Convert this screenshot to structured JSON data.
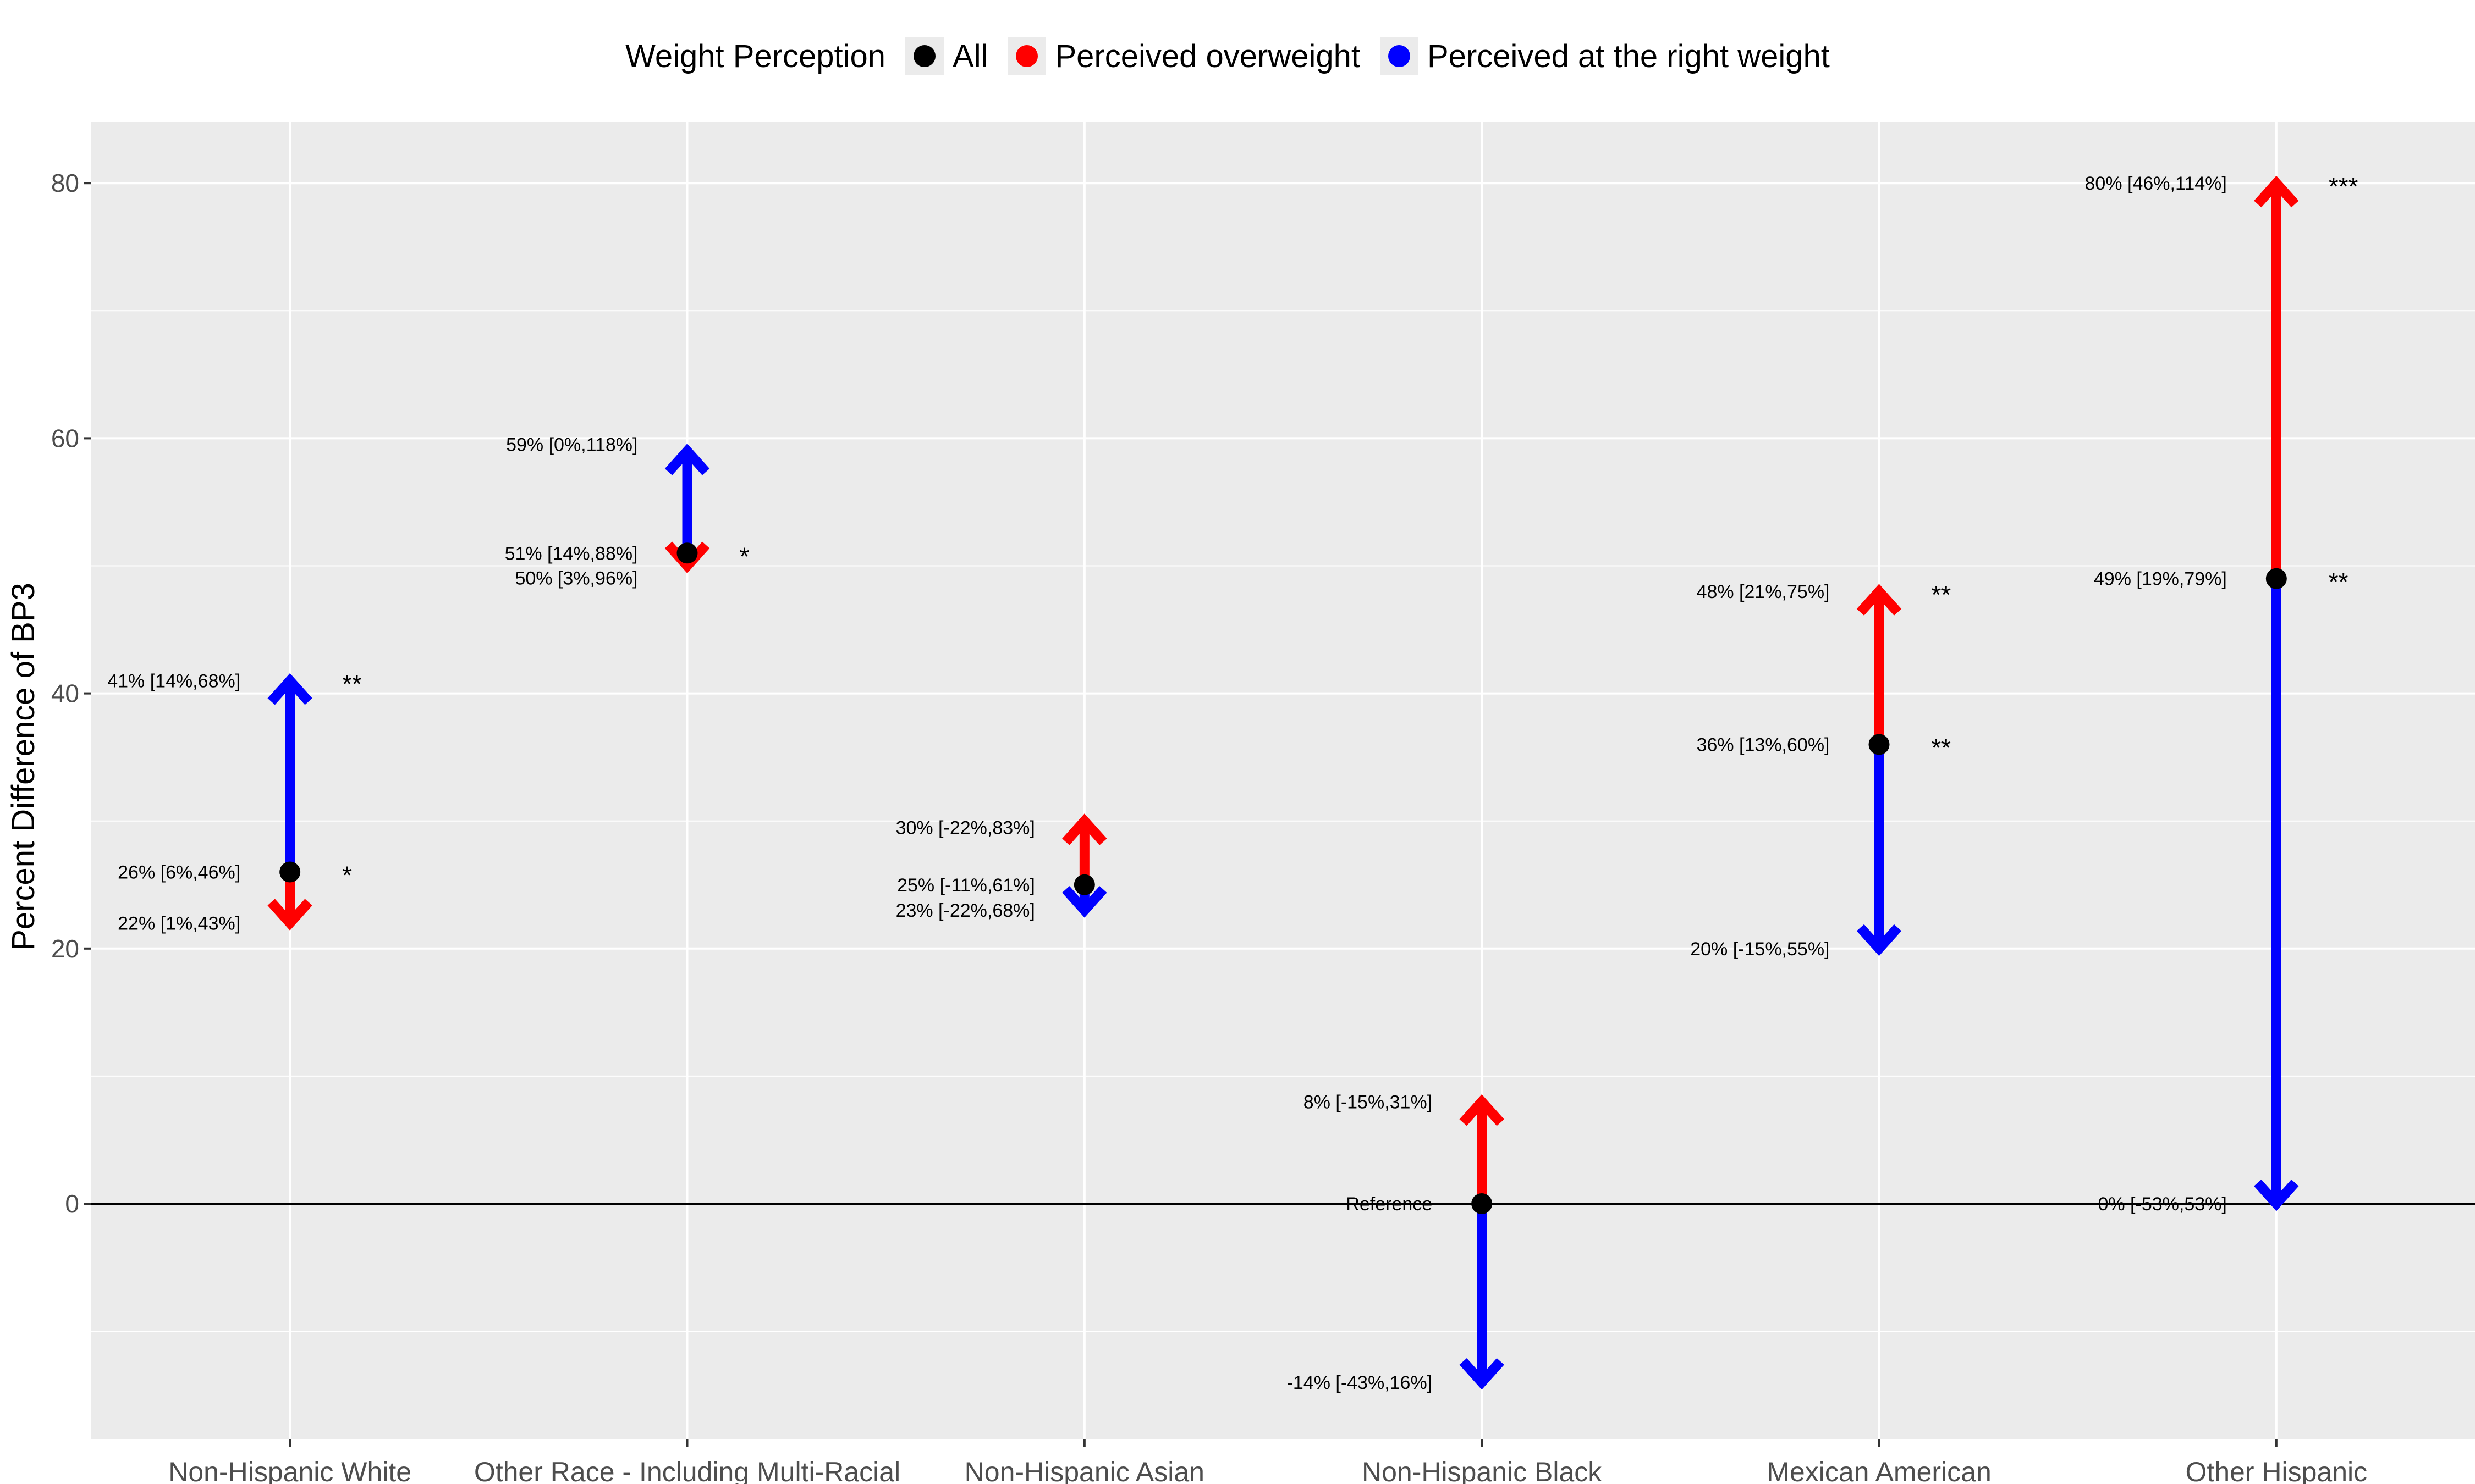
{
  "chart_data": {
    "type": "scatter",
    "ylabel": "Percent Difference of BP3",
    "xlabel": "",
    "ylim": [
      -18,
      85
    ],
    "yticks": [
      0,
      20,
      40,
      60,
      80
    ],
    "legend": {
      "title": "Weight Perception",
      "position": "top",
      "entries": [
        {
          "name": "All",
          "color": "#000000"
        },
        {
          "name": "Perceived overweight",
          "color": "#ff0000"
        },
        {
          "name": "Perceived at the right weight",
          "color": "#0000ff"
        }
      ]
    },
    "categories": [
      "Non-Hispanic White",
      "Other Race - Including Multi-Racial",
      "Non-Hispanic Asian",
      "Non-Hispanic Black",
      "Mexican American",
      "Other Hispanic"
    ],
    "series": [
      {
        "name": "All",
        "color": "#000000",
        "values": [
          26,
          51,
          25,
          0,
          36,
          49
        ],
        "labels": [
          "26% [6%,46%]",
          "51% [14%,88%]",
          "25% [-11%,61%]",
          "Reference",
          "36% [13%,60%]",
          "49% [19%,79%]"
        ],
        "stars": [
          "*",
          "*",
          "",
          "",
          "**",
          "**"
        ]
      },
      {
        "name": "Perceived overweight",
        "color": "#ff0000",
        "values": [
          22,
          50,
          30,
          8,
          48,
          80
        ],
        "labels": [
          "22% [1%,43%]",
          "50% [3%,96%]",
          "30% [-22%,83%]",
          "8% [-15%,31%]",
          "48% [21%,75%]",
          "80% [46%,114%]"
        ],
        "stars": [
          "",
          "",
          "",
          "",
          "**",
          "***"
        ]
      },
      {
        "name": "Perceived at the right weight",
        "color": "#0000ff",
        "values": [
          41,
          59,
          23,
          -14,
          20,
          0
        ],
        "labels": [
          "41% [14%,68%]",
          "59% [0%,118%]",
          "23% [-22%,68%]",
          "-14% [-43%,16%]",
          "20% [-15%,55%]",
          "0% [-53%,53%]"
        ],
        "stars": [
          "**",
          "",
          "",
          "",
          "",
          ""
        ]
      }
    ],
    "grid": true,
    "reference_line": 0
  }
}
